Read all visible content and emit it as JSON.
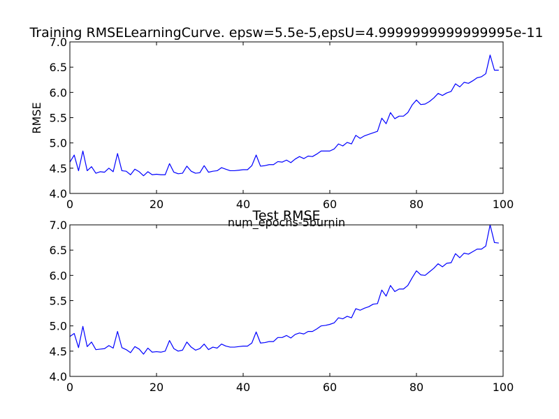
{
  "chart_data": [
    {
      "type": "line",
      "title": "Training RMSELearningCurve. epsw=5.5e-5,epsU=4.9999999999999995e-11",
      "xlabel": "num_epochs-5burnin",
      "ylabel": "RMSE",
      "xlim": [
        0,
        100
      ],
      "ylim": [
        4.0,
        7.0
      ],
      "xticks": [
        "0",
        "20",
        "40",
        "60",
        "80",
        "100"
      ],
      "yticks": [
        "4.0",
        "4.5",
        "5.0",
        "5.5",
        "6.0",
        "6.5",
        "7.0"
      ],
      "grid": false,
      "line_color": "#0000ff",
      "series": [
        {
          "values": [
            4.62,
            4.76,
            4.45,
            4.84,
            4.45,
            4.53,
            4.4,
            4.43,
            4.42,
            4.5,
            4.43,
            4.79,
            4.45,
            4.44,
            4.37,
            4.48,
            4.43,
            4.35,
            4.43,
            4.37,
            4.38,
            4.37,
            4.37,
            4.59,
            4.42,
            4.39,
            4.4,
            4.54,
            4.44,
            4.4,
            4.41,
            4.55,
            4.42,
            4.44,
            4.45,
            4.51,
            4.48,
            4.45,
            4.45,
            4.46,
            4.47,
            4.47,
            4.55,
            4.76,
            4.54,
            4.55,
            4.57,
            4.57,
            4.63,
            4.62,
            4.66,
            4.61,
            4.68,
            4.73,
            4.69,
            4.74,
            4.73,
            4.78,
            4.84,
            4.84,
            4.84,
            4.88,
            4.98,
            4.94,
            5.01,
            4.98,
            5.15,
            5.09,
            5.14,
            5.17,
            5.2,
            5.23,
            5.49,
            5.38,
            5.6,
            5.48,
            5.53,
            5.53,
            5.6,
            5.75,
            5.85,
            5.76,
            5.77,
            5.82,
            5.89,
            5.98,
            5.94,
            5.99,
            6.02,
            6.17,
            6.11,
            6.2,
            6.18,
            6.23,
            6.29,
            6.31,
            6.37,
            6.74,
            6.44,
            6.44
          ]
        }
      ]
    },
    {
      "type": "line",
      "title": "Test RMSE",
      "xlabel": "",
      "ylabel": "",
      "xlim": [
        0,
        100
      ],
      "ylim": [
        4.0,
        7.0
      ],
      "xticks": [
        "0",
        "20",
        "40",
        "60",
        "80",
        "100"
      ],
      "yticks": [
        "4.0",
        "4.5",
        "5.0",
        "5.5",
        "6.0",
        "6.5",
        "7.0"
      ],
      "grid": false,
      "line_color": "#0000ff",
      "series": [
        {
          "values": [
            4.79,
            4.85,
            4.57,
            4.99,
            4.59,
            4.68,
            4.53,
            4.54,
            4.55,
            4.61,
            4.56,
            4.89,
            4.57,
            4.53,
            4.47,
            4.59,
            4.54,
            4.44,
            4.56,
            4.48,
            4.49,
            4.48,
            4.5,
            4.71,
            4.55,
            4.5,
            4.52,
            4.68,
            4.58,
            4.52,
            4.55,
            4.64,
            4.53,
            4.58,
            4.56,
            4.64,
            4.6,
            4.58,
            4.58,
            4.59,
            4.6,
            4.6,
            4.66,
            4.88,
            4.66,
            4.67,
            4.69,
            4.69,
            4.77,
            4.77,
            4.81,
            4.76,
            4.83,
            4.86,
            4.84,
            4.89,
            4.89,
            4.94,
            5.0,
            5.01,
            5.03,
            5.06,
            5.16,
            5.14,
            5.19,
            5.16,
            5.34,
            5.31,
            5.35,
            5.38,
            5.43,
            5.44,
            5.71,
            5.59,
            5.8,
            5.68,
            5.73,
            5.73,
            5.8,
            5.95,
            6.09,
            6.01,
            6.0,
            6.07,
            6.14,
            6.23,
            6.17,
            6.24,
            6.25,
            6.43,
            6.35,
            6.44,
            6.42,
            6.47,
            6.52,
            6.52,
            6.58,
            7.0,
            6.65,
            6.64
          ]
        }
      ]
    }
  ]
}
